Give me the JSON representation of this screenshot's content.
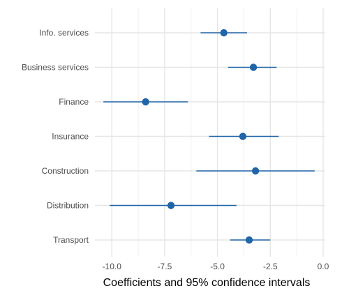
{
  "chart_data": {
    "type": "scatter",
    "subtype": "coefficient-plot-with-confidence-intervals",
    "title": "",
    "xlabel": "Coefficients and 95% confidence intervals",
    "ylabel": "",
    "xlim": [
      -10.8,
      0.1
    ],
    "x_ticks": [
      -10.0,
      -7.5,
      -5.0,
      -2.5,
      0.0
    ],
    "x_tick_labels": [
      "-10.0",
      "-7.5",
      "-5.0",
      "-2.5",
      "0.0"
    ],
    "grid": true,
    "legend": "none",
    "point_color": "#1f65a8",
    "categories": [
      "Info. services",
      "Business services",
      "Finance",
      "Insurance",
      "Construction",
      "Distribution",
      "Transport"
    ],
    "points": [
      {
        "category": "Info. services",
        "estimate": -4.7,
        "lower": -5.8,
        "upper": -3.6
      },
      {
        "category": "Business services",
        "estimate": -3.3,
        "lower": -4.5,
        "upper": -2.2
      },
      {
        "category": "Finance",
        "estimate": -8.4,
        "lower": -10.4,
        "upper": -6.4
      },
      {
        "category": "Insurance",
        "estimate": -3.8,
        "lower": -5.4,
        "upper": -2.1
      },
      {
        "category": "Construction",
        "estimate": -3.2,
        "lower": -6.0,
        "upper": -0.4
      },
      {
        "category": "Distribution",
        "estimate": -7.2,
        "lower": -10.1,
        "upper": -4.1
      },
      {
        "category": "Transport",
        "estimate": -3.5,
        "lower": -4.4,
        "upper": -2.5
      }
    ]
  }
}
